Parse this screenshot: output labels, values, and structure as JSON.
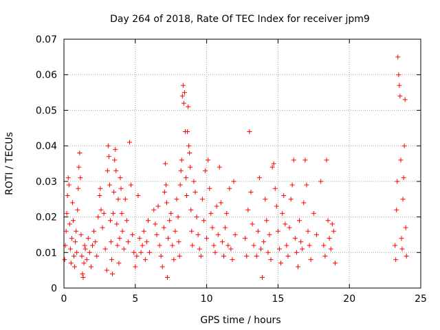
{
  "chart_data": {
    "type": "scatter",
    "title": "Day 264 of 2018, Rate Of TEC Index for receiver jpm9",
    "xlabel": "GPS time / hours",
    "ylabel": "ROTI / TECUs",
    "xlim": [
      0,
      25
    ],
    "ylim": [
      0,
      0.07
    ],
    "x_ticks": [
      0,
      5,
      10,
      15,
      20,
      25
    ],
    "x_tick_labels": [
      "0",
      "5",
      "10",
      "15",
      "20",
      "25"
    ],
    "y_ticks": [
      0,
      0.01,
      0.02,
      0.03,
      0.04,
      0.05,
      0.06,
      0.07
    ],
    "y_tick_labels": [
      "0",
      "0.01",
      "0.02",
      "0.03",
      "0.04",
      "0.05",
      "0.06",
      "0.07"
    ],
    "grid": true,
    "marker": "+",
    "marker_color": "#ff0000",
    "series": [
      {
        "name": "ROTI",
        "points": [
          [
            0.05,
            0.008
          ],
          [
            0.1,
            0.012
          ],
          [
            0.15,
            0.016
          ],
          [
            0.2,
            0.021
          ],
          [
            0.25,
            0.026
          ],
          [
            0.3,
            0.031
          ],
          [
            0.35,
            0.029
          ],
          [
            0.4,
            0.018
          ],
          [
            0.45,
            0.011
          ],
          [
            0.5,
            0.007
          ],
          [
            0.55,
            0.014
          ],
          [
            0.6,
            0.024
          ],
          [
            0.65,
            0.019
          ],
          [
            0.7,
            0.009
          ],
          [
            0.75,
            0.006
          ],
          [
            0.8,
            0.013
          ],
          [
            0.85,
            0.016
          ],
          [
            0.9,
            0.01
          ],
          [
            0.95,
            0.022
          ],
          [
            1.0,
            0.028
          ],
          [
            1.05,
            0.034
          ],
          [
            1.1,
            0.038
          ],
          [
            1.15,
            0.031
          ],
          [
            1.2,
            0.015
          ],
          [
            1.25,
            0.009
          ],
          [
            1.3,
            0.004
          ],
          [
            1.35,
            0.003
          ],
          [
            1.4,
            0.007
          ],
          [
            1.45,
            0.012
          ],
          [
            1.5,
            0.011
          ],
          [
            1.6,
            0.008
          ],
          [
            1.7,
            0.014
          ],
          [
            1.8,
            0.01
          ],
          [
            1.9,
            0.006
          ],
          [
            2.0,
            0.012
          ],
          [
            2.1,
            0.016
          ],
          [
            2.2,
            0.013
          ],
          [
            2.3,
            0.009
          ],
          [
            2.4,
            0.02
          ],
          [
            2.5,
            0.026
          ],
          [
            2.55,
            0.028
          ],
          [
            2.6,
            0.022
          ],
          [
            2.7,
            0.017
          ],
          [
            2.8,
            0.021
          ],
          [
            2.9,
            0.011
          ],
          [
            3.0,
            0.005
          ],
          [
            3.05,
            0.033
          ],
          [
            3.1,
            0.04
          ],
          [
            3.15,
            0.037
          ],
          [
            3.2,
            0.029
          ],
          [
            3.25,
            0.019
          ],
          [
            3.3,
            0.013
          ],
          [
            3.35,
            0.008
          ],
          [
            3.4,
            0.004
          ],
          [
            3.45,
            0.021
          ],
          [
            3.5,
            0.027
          ],
          [
            3.55,
            0.036
          ],
          [
            3.6,
            0.039
          ],
          [
            3.65,
            0.033
          ],
          [
            3.7,
            0.018
          ],
          [
            3.75,
            0.012
          ],
          [
            3.8,
            0.025
          ],
          [
            3.85,
            0.007
          ],
          [
            3.9,
            0.014
          ],
          [
            3.95,
            0.031
          ],
          [
            4.0,
            0.028
          ],
          [
            4.05,
            0.021
          ],
          [
            4.1,
            0.016
          ],
          [
            4.2,
            0.011
          ],
          [
            4.3,
            0.025
          ],
          [
            4.4,
            0.019
          ],
          [
            4.5,
            0.013
          ],
          [
            4.6,
            0.041
          ],
          [
            4.7,
            0.029
          ],
          [
            4.8,
            0.015
          ],
          [
            4.9,
            0.01
          ],
          [
            5.0,
            0.006
          ],
          [
            5.1,
            0.009
          ],
          [
            5.2,
            0.026
          ],
          [
            5.3,
            0.014
          ],
          [
            5.4,
            0.01
          ],
          [
            5.5,
            0.012
          ],
          [
            5.6,
            0.016
          ],
          [
            5.7,
            0.008
          ],
          [
            5.8,
            0.013
          ],
          [
            5.9,
            0.019
          ],
          [
            6.0,
            0.01
          ],
          [
            6.3,
            0.022
          ],
          [
            6.4,
            0.018
          ],
          [
            6.5,
            0.015
          ],
          [
            6.6,
            0.023
          ],
          [
            6.7,
            0.012
          ],
          [
            6.8,
            0.009
          ],
          [
            6.9,
            0.006
          ],
          [
            7.0,
            0.017
          ],
          [
            7.05,
            0.027
          ],
          [
            7.1,
            0.035
          ],
          [
            7.15,
            0.029
          ],
          [
            7.2,
            0.024
          ],
          [
            7.25,
            0.003
          ],
          [
            7.3,
            0.014
          ],
          [
            7.4,
            0.019
          ],
          [
            7.5,
            0.021
          ],
          [
            7.6,
            0.012
          ],
          [
            7.7,
            0.008
          ],
          [
            7.8,
            0.016
          ],
          [
            7.9,
            0.025
          ],
          [
            8.0,
            0.02
          ],
          [
            8.05,
            0.013
          ],
          [
            8.1,
            0.009
          ],
          [
            8.15,
            0.029
          ],
          [
            8.2,
            0.033
          ],
          [
            8.25,
            0.036
          ],
          [
            8.3,
            0.054
          ],
          [
            8.35,
            0.057
          ],
          [
            8.4,
            0.052
          ],
          [
            8.45,
            0.055
          ],
          [
            8.5,
            0.044
          ],
          [
            8.55,
            0.031
          ],
          [
            8.6,
            0.026
          ],
          [
            8.65,
            0.044
          ],
          [
            8.7,
            0.051
          ],
          [
            8.75,
            0.04
          ],
          [
            8.8,
            0.038
          ],
          [
            8.85,
            0.034
          ],
          [
            8.9,
            0.022
          ],
          [
            8.95,
            0.016
          ],
          [
            9.0,
            0.012
          ],
          [
            9.1,
            0.03
          ],
          [
            9.2,
            0.027
          ],
          [
            9.3,
            0.02
          ],
          [
            9.4,
            0.015
          ],
          [
            9.5,
            0.011
          ],
          [
            9.6,
            0.009
          ],
          [
            9.7,
            0.025
          ],
          [
            9.8,
            0.019
          ],
          [
            9.9,
            0.033
          ],
          [
            10.0,
            0.014
          ],
          [
            10.1,
            0.036
          ],
          [
            10.2,
            0.028
          ],
          [
            10.3,
            0.021
          ],
          [
            10.4,
            0.017
          ],
          [
            10.5,
            0.012
          ],
          [
            10.6,
            0.01
          ],
          [
            10.7,
            0.023
          ],
          [
            10.8,
            0.015
          ],
          [
            10.9,
            0.034
          ],
          [
            11.0,
            0.024
          ],
          [
            11.1,
            0.013
          ],
          [
            11.2,
            0.009
          ],
          [
            11.3,
            0.017
          ],
          [
            11.4,
            0.021
          ],
          [
            11.5,
            0.012
          ],
          [
            11.6,
            0.028
          ],
          [
            11.7,
            0.011
          ],
          [
            11.8,
            0.008
          ],
          [
            11.9,
            0.03
          ],
          [
            12.0,
            0.015
          ],
          [
            12.7,
            0.014
          ],
          [
            12.8,
            0.009
          ],
          [
            12.9,
            0.022
          ],
          [
            13.0,
            0.044
          ],
          [
            13.1,
            0.027
          ],
          [
            13.2,
            0.018
          ],
          [
            13.3,
            0.012
          ],
          [
            13.5,
            0.009
          ],
          [
            13.6,
            0.016
          ],
          [
            13.7,
            0.031
          ],
          [
            13.8,
            0.011
          ],
          [
            13.9,
            0.003
          ],
          [
            14.0,
            0.013
          ],
          [
            14.1,
            0.025
          ],
          [
            14.2,
            0.019
          ],
          [
            14.3,
            0.01
          ],
          [
            14.4,
            0.015
          ],
          [
            14.5,
            0.008
          ],
          [
            14.6,
            0.034
          ],
          [
            14.7,
            0.035
          ],
          [
            14.8,
            0.028
          ],
          [
            14.9,
            0.023
          ],
          [
            15.0,
            0.016
          ],
          [
            15.1,
            0.011
          ],
          [
            15.2,
            0.007
          ],
          [
            15.3,
            0.021
          ],
          [
            15.4,
            0.026
          ],
          [
            15.5,
            0.018
          ],
          [
            15.6,
            0.012
          ],
          [
            15.7,
            0.009
          ],
          [
            15.8,
            0.017
          ],
          [
            15.9,
            0.025
          ],
          [
            16.0,
            0.029
          ],
          [
            16.1,
            0.036
          ],
          [
            16.2,
            0.014
          ],
          [
            16.3,
            0.01
          ],
          [
            16.4,
            0.006
          ],
          [
            16.5,
            0.019
          ],
          [
            16.6,
            0.013
          ],
          [
            16.7,
            0.011
          ],
          [
            16.8,
            0.024
          ],
          [
            16.9,
            0.036
          ],
          [
            17.0,
            0.029
          ],
          [
            17.1,
            0.016
          ],
          [
            17.2,
            0.012
          ],
          [
            17.3,
            0.008
          ],
          [
            17.5,
            0.021
          ],
          [
            17.7,
            0.015
          ],
          [
            18.0,
            0.03
          ],
          [
            18.2,
            0.012
          ],
          [
            18.3,
            0.009
          ],
          [
            18.4,
            0.036
          ],
          [
            18.5,
            0.019
          ],
          [
            18.6,
            0.014
          ],
          [
            18.7,
            0.011
          ],
          [
            18.8,
            0.018
          ],
          [
            18.9,
            0.016
          ],
          [
            19.0,
            0.007
          ],
          [
            23.2,
            0.012
          ],
          [
            23.25,
            0.008
          ],
          [
            23.3,
            0.022
          ],
          [
            23.35,
            0.03
          ],
          [
            23.4,
            0.065
          ],
          [
            23.45,
            0.06
          ],
          [
            23.5,
            0.057
          ],
          [
            23.55,
            0.054
          ],
          [
            23.6,
            0.036
          ],
          [
            23.65,
            0.014
          ],
          [
            23.7,
            0.011
          ],
          [
            23.75,
            0.025
          ],
          [
            23.8,
            0.031
          ],
          [
            23.85,
            0.04
          ],
          [
            23.9,
            0.053
          ],
          [
            23.95,
            0.017
          ],
          [
            24.0,
            0.009
          ]
        ]
      }
    ]
  }
}
